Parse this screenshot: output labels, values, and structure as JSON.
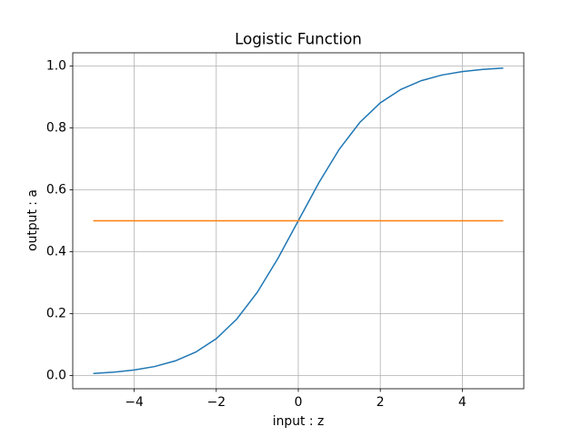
{
  "chart_data": {
    "type": "line",
    "title": "Logistic Function",
    "x_label": "input : z",
    "y_label": "output : a",
    "x": [
      -5,
      -4.5,
      -4,
      -3.5,
      -3,
      -2.5,
      -2,
      -1.5,
      -1,
      -0.5,
      0,
      0.5,
      1,
      1.5,
      2,
      2.5,
      3,
      3.5,
      4,
      4.5,
      5
    ],
    "series": [
      {
        "color": "#1f77b4",
        "values": [
          0.0067,
          0.011,
          0.018,
          0.0293,
          0.0474,
          0.0759,
          0.1192,
          0.1824,
          0.2689,
          0.3775,
          0.5,
          0.6225,
          0.7311,
          0.8176,
          0.8808,
          0.9241,
          0.9526,
          0.9707,
          0.982,
          0.989,
          0.9933
        ]
      },
      {
        "color": "#ff7f0e",
        "values": [
          0.5,
          0.5,
          0.5,
          0.5,
          0.5,
          0.5,
          0.5,
          0.5,
          0.5,
          0.5,
          0.5,
          0.5,
          0.5,
          0.5,
          0.5,
          0.5,
          0.5,
          0.5,
          0.5,
          0.5,
          0.5
        ]
      }
    ],
    "xlim": [
      -5.5,
      5.5
    ],
    "ylim": [
      -0.0426,
      1.0426
    ],
    "xticks": [
      {
        "value": -4,
        "label": "−4"
      },
      {
        "value": -2,
        "label": "−2"
      },
      0,
      2,
      4
    ],
    "yticks": [
      {
        "value": 0,
        "label": "0.0"
      },
      0.2,
      0.4,
      0.6,
      0.8,
      {
        "value": 1,
        "label": "1.0"
      }
    ],
    "grid": true
  }
}
